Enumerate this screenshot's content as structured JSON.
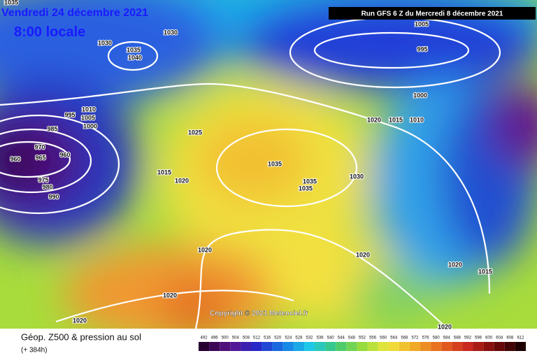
{
  "header": {
    "date": "Vendredi 24 décembre 2021",
    "time": "8:00 locale",
    "run": "Run GFS 6 Z du Mercredi 8 décembre 2021"
  },
  "copyright": "Copyright © 2021 Meteociel.fr",
  "legend": {
    "title": "Géop. Z500 & pression au sol",
    "subtitle": "(+ 384h)",
    "scale": [
      492,
      496,
      500,
      504,
      508,
      512,
      516,
      520,
      524,
      528,
      532,
      536,
      540,
      544,
      548,
      552,
      556,
      560,
      564,
      568,
      572,
      576,
      580,
      584,
      588,
      592,
      596,
      600,
      604,
      608,
      612
    ]
  },
  "isobar_labels": [
    "1035",
    "1030",
    "1030",
    "1035",
    "1040",
    "1005",
    "995",
    "1000",
    "1020",
    "1015",
    "1010",
    "1010",
    "995",
    "1005",
    "1000",
    "985",
    "970",
    "960",
    "960",
    "965",
    "975",
    "980",
    "990",
    "1025",
    "1015",
    "1020",
    "1035",
    "1035",
    "1035",
    "1030",
    "1020",
    "1020",
    "1020",
    "1015",
    "1020",
    "1020",
    "1020"
  ]
}
